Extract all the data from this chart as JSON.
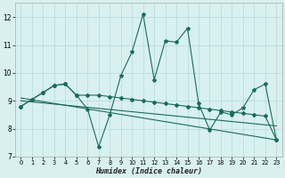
{
  "x": [
    0,
    1,
    2,
    3,
    4,
    5,
    6,
    7,
    8,
    9,
    10,
    11,
    12,
    13,
    14,
    15,
    16,
    17,
    18,
    19,
    20,
    21,
    22,
    23
  ],
  "series_jagged": [
    8.8,
    9.05,
    9.3,
    9.55,
    9.6,
    9.2,
    8.7,
    7.35,
    8.5,
    9.9,
    10.75,
    12.1,
    9.75,
    11.15,
    11.1,
    11.6,
    8.9,
    7.95,
    8.6,
    8.5,
    8.75,
    9.4,
    9.6,
    7.6
  ],
  "series_smooth": [
    8.8,
    9.05,
    9.3,
    9.55,
    9.6,
    9.2,
    9.2,
    9.2,
    9.15,
    9.1,
    9.05,
    9.0,
    8.95,
    8.9,
    8.85,
    8.8,
    8.75,
    8.7,
    8.65,
    8.6,
    8.55,
    8.5,
    8.45,
    7.6
  ],
  "line_color": "#1a6b5c",
  "bg_color": "#d8f0f0",
  "grid_color": "#b8d8d8",
  "xlabel": "Humidex (Indice chaleur)",
  "ylim": [
    7,
    12.5
  ],
  "xlim": [
    -0.5,
    23.5
  ],
  "yticks": [
    7,
    8,
    9,
    10,
    11,
    12
  ],
  "xticks": [
    0,
    1,
    2,
    3,
    4,
    5,
    6,
    7,
    8,
    9,
    10,
    11,
    12,
    13,
    14,
    15,
    16,
    17,
    18,
    19,
    20,
    21,
    22,
    23
  ]
}
